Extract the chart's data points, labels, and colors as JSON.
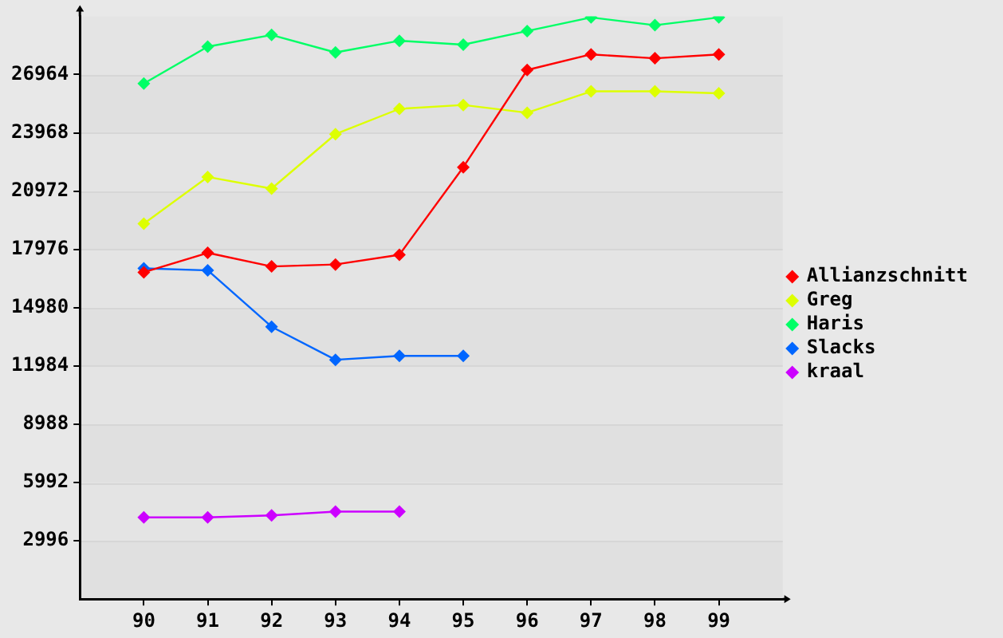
{
  "chart_data": {
    "type": "line",
    "categories": [
      "90",
      "91",
      "92",
      "93",
      "94",
      "95",
      "96",
      "97",
      "98",
      "99"
    ],
    "series": [
      {
        "name": "Allianzschnitt",
        "color": "#ff0000",
        "values": [
          16800,
          17800,
          17100,
          17200,
          17700,
          22200,
          27200,
          28000,
          27800,
          28000
        ]
      },
      {
        "name": "Greg",
        "color": "#ddff00",
        "values": [
          19300,
          21700,
          21100,
          23900,
          25200,
          25400,
          25000,
          26100,
          26100,
          26000
        ]
      },
      {
        "name": "Haris",
        "color": "#00ff66",
        "values": [
          26500,
          28400,
          29000,
          28100,
          28700,
          28500,
          29200,
          29900,
          29500,
          29900
        ]
      },
      {
        "name": "Slacks",
        "color": "#0066ff",
        "values": [
          17000,
          16900,
          14000,
          12300,
          12500,
          12500,
          null,
          null,
          null,
          null
        ]
      },
      {
        "name": "kraal",
        "color": "#cc00ff",
        "values": [
          4200,
          4200,
          4300,
          4500,
          4500,
          null,
          null,
          null,
          null,
          null
        ]
      }
    ],
    "ylim": [
      0,
      29960
    ],
    "yticks": [
      2996,
      5992,
      8988,
      11984,
      14980,
      17976,
      20972,
      23968,
      26964
    ],
    "grid": "y",
    "legend": "right",
    "marker": "diamond",
    "line_style": "solid"
  }
}
